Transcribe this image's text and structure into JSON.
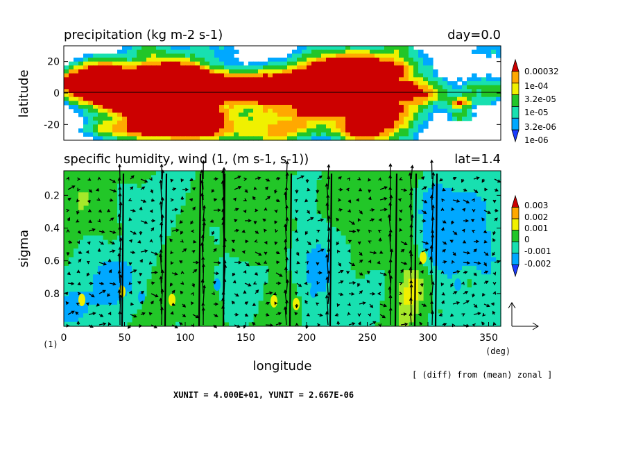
{
  "panel_top": {
    "title": "precipitation (kg m-2 s-1)",
    "time_label": "day=0.0",
    "ylabel": "latitude",
    "yticks": [
      "20",
      "0",
      "-20"
    ],
    "legend_labels": [
      "0.00032",
      "1e-04",
      "3.2e-05",
      "1e-05",
      "3.2e-06",
      "1e-06"
    ]
  },
  "panel_bottom": {
    "title": "specific humidity, wind (1, (m s-1, s-1))",
    "lat_label": "lat=1.4",
    "ylabel": "sigma",
    "yticks": [
      "0.2",
      "0.4",
      "0.6",
      "0.8"
    ],
    "xticks": [
      "0",
      "50",
      "100",
      "150",
      "200",
      "250",
      "300",
      "350"
    ],
    "xunit": "(deg)",
    "corner_label": "(1)",
    "xlabel": "longitude",
    "legend_labels": [
      "0.003",
      "0.002",
      "0.001",
      "0",
      "-0.001",
      "-0.002"
    ]
  },
  "footer": {
    "note": "[ (diff) from (mean) zonal ]",
    "units": "XUNIT = 4.000E+01, YUNIT = 2.667E-06"
  },
  "colors": {
    "levels": [
      "#1a3cff",
      "#00a8ff",
      "#18e0b0",
      "#22c628",
      "#a6e82a",
      "#f0f000",
      "#ffa800",
      "#f03000",
      "#cc0000"
    ]
  },
  "chart_data": [
    {
      "type": "heatmap",
      "title": "precipitation (kg m-2 s-1)",
      "ylabel": "latitude",
      "xlim": [
        0,
        360
      ],
      "ylim": [
        -30,
        30
      ],
      "contour_levels": [
        1e-06,
        3.2e-06,
        1e-05,
        3.2e-05,
        0.0001,
        0.00032
      ]
    },
    {
      "type": "heatmap",
      "title": "specific humidity, wind (1, (m s-1, s-1))",
      "xlabel": "longitude",
      "ylabel": "sigma",
      "xlim": [
        0,
        360
      ],
      "ylim": [
        1.0,
        0.05
      ],
      "contour_levels": [
        -0.002,
        -0.001,
        0,
        0.001,
        0.002,
        0.003
      ]
    }
  ]
}
